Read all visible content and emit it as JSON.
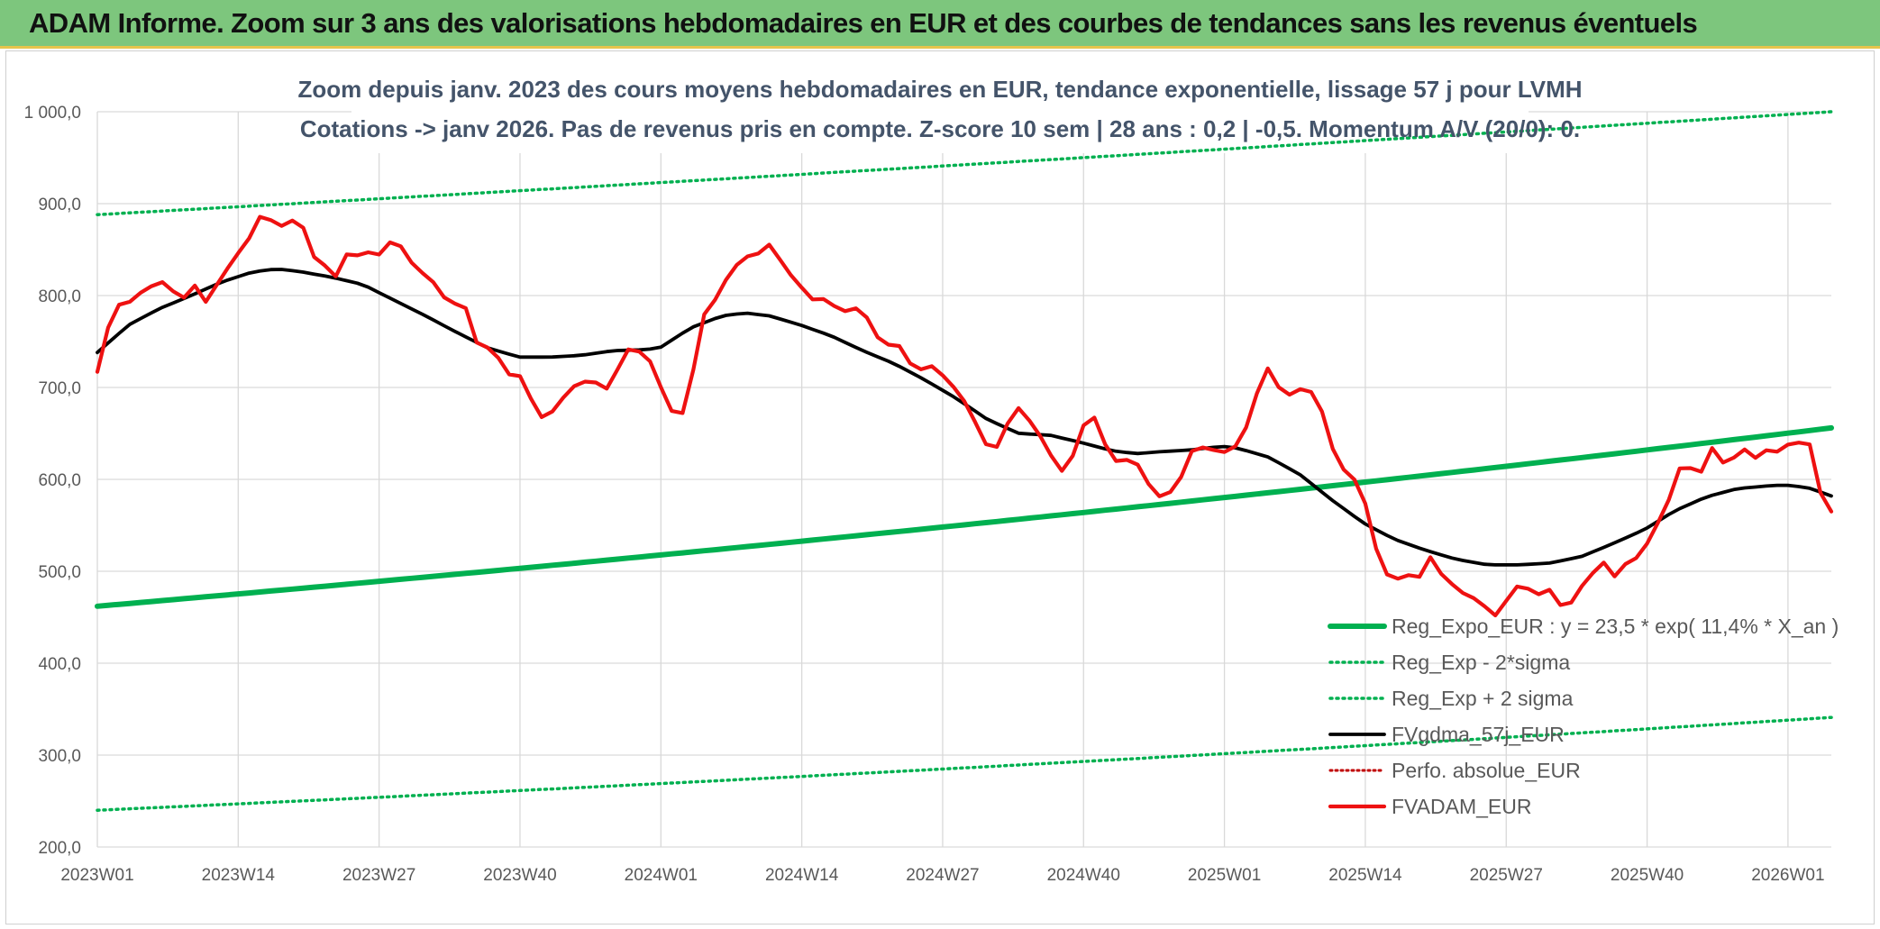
{
  "banner": {
    "title": "ADAM Informe. Zoom sur 3 ans des valorisations hebdomadaires en EUR et des courbes de tendances sans les revenus éventuels"
  },
  "colors": {
    "trend": "#00b050",
    "price": "#ee1111",
    "ma": "#000000",
    "perf": "#c00000",
    "grid": "#d9d9d9"
  },
  "chart_data": {
    "type": "line",
    "title": "Zoom depuis janv. 2023 des cours moyens hebdomadaires en EUR, tendance exponentielle, lissage 57 j pour LVMH",
    "subtitle": "Cotations -> janv 2026. Pas de revenus pris en compte. Z-score 10 sem | 28 ans : 0,2 | -0,5. Momentum A/V (20/0): 0.",
    "xlabel": "",
    "ylabel": "",
    "ylim": [
      200,
      1000
    ],
    "yticks": [
      "200,0",
      "300,0",
      "400,0",
      "500,0",
      "600,0",
      "700,0",
      "800,0",
      "900,0",
      "1 000,0"
    ],
    "xticks": [
      "2023W01",
      "2023W14",
      "2023W27",
      "2023W40",
      "2024W01",
      "2024W14",
      "2024W27",
      "2024W40",
      "2025W01",
      "2025W14",
      "2025W27",
      "2025W40",
      "2026W01"
    ],
    "n_points": 161,
    "grid": true,
    "legend_position": "bottom-right",
    "series": [
      {
        "name": "Reg_Expo_EUR : y = 23,5 * exp( 11,4% *  X_an )",
        "style": "trend",
        "start": 462,
        "end": 656
      },
      {
        "name": "Reg_Exp - 2*sigma",
        "style": "dotted-green",
        "start": 240,
        "end": 341
      },
      {
        "name": "Reg_Exp + 2 sigma",
        "style": "dotted-green",
        "start": 888,
        "end": 1000,
        "cap": 1000
      },
      {
        "name": "FVgdma_57j_EUR",
        "style": "ma",
        "keyframes": [
          [
            0,
            738
          ],
          [
            4,
            768
          ],
          [
            8,
            786
          ],
          [
            12,
            800
          ],
          [
            16,
            815
          ],
          [
            20,
            826
          ],
          [
            23,
            829
          ],
          [
            26,
            826
          ],
          [
            30,
            820
          ],
          [
            34,
            812
          ],
          [
            38,
            795
          ],
          [
            42,
            778
          ],
          [
            46,
            760
          ],
          [
            50,
            743
          ],
          [
            54,
            733
          ],
          [
            58,
            733
          ],
          [
            62,
            735
          ],
          [
            66,
            740
          ],
          [
            70,
            741
          ],
          [
            72,
            743
          ],
          [
            76,
            765
          ],
          [
            80,
            778
          ],
          [
            83,
            781
          ],
          [
            86,
            778
          ],
          [
            90,
            768
          ],
          [
            94,
            756
          ],
          [
            98,
            740
          ],
          [
            102,
            726
          ],
          [
            106,
            708
          ],
          [
            110,
            688
          ],
          [
            114,
            665
          ],
          [
            118,
            650
          ],
          [
            122,
            648
          ],
          [
            126,
            640
          ],
          [
            130,
            631
          ],
          [
            133,
            628
          ],
          [
            136,
            630
          ],
          [
            140,
            632
          ],
          [
            144,
            636
          ],
          [
            146,
            634
          ],
          [
            150,
            624
          ],
          [
            154,
            605
          ],
          [
            158,
            578
          ],
          [
            162,
            553
          ],
          [
            166,
            535
          ],
          [
            170,
            523
          ],
          [
            174,
            513
          ],
          [
            178,
            507
          ],
          [
            182,
            507
          ],
          [
            186,
            509
          ],
          [
            190,
            516
          ],
          [
            194,
            530
          ],
          [
            198,
            545
          ],
          [
            202,
            566
          ],
          [
            206,
            581
          ],
          [
            210,
            590
          ],
          [
            214,
            593
          ],
          [
            216,
            594
          ],
          [
            219,
            591
          ],
          [
            222,
            582
          ]
        ]
      },
      {
        "name": "Perfo. absolue_EUR",
        "style": "dotted-red"
      },
      {
        "name": "FVADAM_EUR",
        "style": "price",
        "keyframes": [
          [
            0,
            717
          ],
          [
            2,
            765
          ],
          [
            4,
            790
          ],
          [
            6,
            793
          ],
          [
            8,
            803
          ],
          [
            10,
            810
          ],
          [
            12,
            815
          ],
          [
            14,
            805
          ],
          [
            16,
            797
          ],
          [
            18,
            812
          ],
          [
            20,
            792
          ],
          [
            22,
            810
          ],
          [
            24,
            828
          ],
          [
            26,
            845
          ],
          [
            28,
            860
          ],
          [
            30,
            886
          ],
          [
            32,
            883
          ],
          [
            34,
            875
          ],
          [
            36,
            882
          ],
          [
            38,
            878
          ],
          [
            40,
            843
          ],
          [
            42,
            835
          ],
          [
            44,
            817
          ],
          [
            46,
            845
          ],
          [
            48,
            843
          ],
          [
            50,
            848
          ],
          [
            52,
            842
          ],
          [
            54,
            858
          ],
          [
            56,
            857
          ],
          [
            58,
            838
          ],
          [
            60,
            826
          ],
          [
            62,
            818
          ],
          [
            64,
            800
          ],
          [
            66,
            790
          ],
          [
            68,
            796
          ],
          [
            70,
            750
          ],
          [
            72,
            745
          ],
          [
            74,
            738
          ],
          [
            76,
            713
          ],
          [
            78,
            718
          ],
          [
            80,
            695
          ],
          [
            82,
            667
          ],
          [
            84,
            670
          ],
          [
            86,
            685
          ],
          [
            88,
            700
          ],
          [
            90,
            705
          ],
          [
            92,
            710
          ],
          [
            94,
            694
          ],
          [
            96,
            710
          ],
          [
            98,
            742
          ],
          [
            100,
            740
          ],
          [
            102,
            737
          ],
          [
            104,
            710
          ],
          [
            106,
            680
          ],
          [
            108,
            663
          ],
          [
            110,
            690
          ],
          [
            112,
            776
          ],
          [
            114,
            786
          ],
          [
            116,
            812
          ],
          [
            118,
            826
          ],
          [
            120,
            846
          ],
          [
            122,
            837
          ],
          [
            124,
            860
          ],
          [
            126,
            848
          ],
          [
            128,
            825
          ],
          [
            130,
            818
          ],
          [
            132,
            795
          ],
          [
            134,
            797
          ],
          [
            136,
            795
          ],
          [
            138,
            780
          ],
          [
            140,
            787
          ],
          [
            142,
            785
          ],
          [
            144,
            765
          ],
          [
            146,
            742
          ],
          [
            148,
            752
          ],
          [
            150,
            737
          ],
          [
            152,
            714
          ],
          [
            154,
            726
          ],
          [
            156,
            720
          ],
          [
            158,
            706
          ],
          [
            160,
            695
          ],
          [
            162,
            675
          ],
          [
            164,
            650
          ],
          [
            166,
            627
          ],
          [
            168,
            643
          ],
          [
            170,
            677
          ],
          [
            172,
            678
          ],
          [
            174,
            652
          ],
          [
            176,
            643
          ],
          [
            178,
            612
          ],
          [
            180,
            607
          ],
          [
            182,
            640
          ],
          [
            184,
            673
          ],
          [
            186,
            663
          ],
          [
            188,
            620
          ],
          [
            190,
            620
          ],
          [
            192,
            622
          ],
          [
            194,
            612
          ],
          [
            196,
            584
          ],
          [
            198,
            580
          ],
          [
            200,
            590
          ],
          [
            202,
            610
          ],
          [
            204,
            643
          ],
          [
            206,
            630
          ],
          [
            208,
            633
          ],
          [
            210,
            628
          ],
          [
            212,
            640
          ],
          [
            214,
            665
          ],
          [
            216,
            708
          ],
          [
            218,
            727
          ],
          [
            220,
            688
          ],
          [
            222,
            694
          ],
          [
            224,
            700
          ],
          [
            226,
            693
          ],
          [
            228,
            666
          ],
          [
            230,
            620
          ],
          [
            232,
            607
          ],
          [
            234,
            597
          ],
          [
            236,
            565
          ],
          [
            238,
            510
          ],
          [
            240,
            492
          ],
          [
            242,
            492
          ],
          [
            244,
            497
          ],
          [
            246,
            493
          ],
          [
            248,
            522
          ],
          [
            250,
            490
          ],
          [
            252,
            485
          ],
          [
            254,
            474
          ],
          [
            256,
            470
          ],
          [
            258,
            460
          ],
          [
            260,
            450
          ],
          [
            262,
            472
          ],
          [
            264,
            486
          ],
          [
            266,
            480
          ],
          [
            268,
            474
          ],
          [
            270,
            481
          ],
          [
            272,
            460
          ],
          [
            274,
            467
          ],
          [
            276,
            487
          ],
          [
            278,
            500
          ],
          [
            280,
            511
          ],
          [
            282,
            492
          ],
          [
            284,
            510
          ],
          [
            286,
            515
          ],
          [
            288,
            532
          ],
          [
            290,
            555
          ],
          [
            292,
            580
          ],
          [
            294,
            615
          ],
          [
            296,
            612
          ],
          [
            298,
            608
          ],
          [
            300,
            636
          ],
          [
            302,
            617
          ],
          [
            304,
            624
          ],
          [
            306,
            633
          ],
          [
            308,
            623
          ],
          [
            310,
            632
          ],
          [
            312,
            630
          ],
          [
            314,
            638
          ],
          [
            316,
            640
          ],
          [
            318,
            638
          ],
          [
            320,
            585
          ],
          [
            322,
            565
          ]
        ]
      }
    ]
  }
}
